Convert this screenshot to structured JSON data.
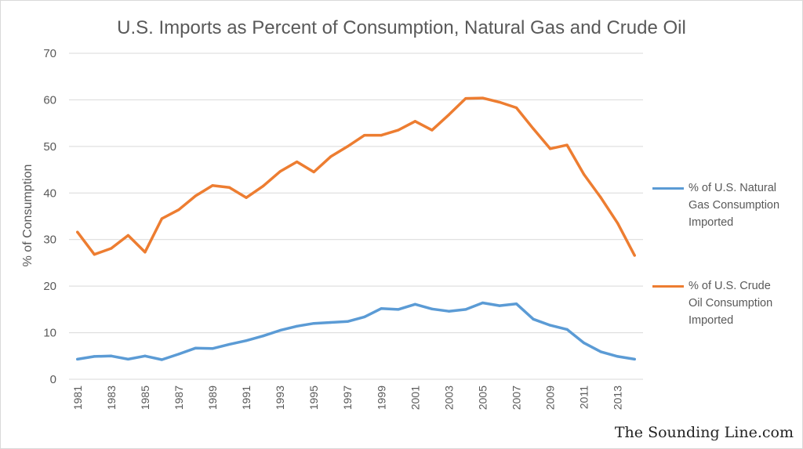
{
  "chart_data": {
    "type": "line",
    "title": "U.S. Imports as Percent of Consumption, Natural Gas and Crude Oil",
    "ylabel": "% of Consumption",
    "xlabel": "",
    "ylim": [
      0,
      70
    ],
    "yticks": [
      0,
      10,
      20,
      30,
      40,
      50,
      60,
      70
    ],
    "x": [
      1981,
      1982,
      1983,
      1984,
      1985,
      1986,
      1987,
      1988,
      1989,
      1990,
      1991,
      1992,
      1993,
      1994,
      1995,
      1996,
      1997,
      1998,
      1999,
      2000,
      2001,
      2002,
      2003,
      2004,
      2005,
      2006,
      2007,
      2008,
      2009,
      2010,
      2011,
      2012,
      2013,
      2014
    ],
    "xtick_labels": [
      "1981",
      "1983",
      "1985",
      "1987",
      "1989",
      "1991",
      "1993",
      "1995",
      "1997",
      "1999",
      "2001",
      "2003",
      "2005",
      "2007",
      "2009",
      "2011",
      "2013"
    ],
    "grid": true,
    "legend_position": "right",
    "series": [
      {
        "name": "% of U.S. Natural Gas Consumption Imported",
        "color": "#5b9bd5",
        "values": [
          4.3,
          4.9,
          5.0,
          4.3,
          5.0,
          4.2,
          5.4,
          6.7,
          6.6,
          7.5,
          8.3,
          9.3,
          10.5,
          11.4,
          12.0,
          12.2,
          12.4,
          13.4,
          15.2,
          15.0,
          16.1,
          15.1,
          14.6,
          15.0,
          16.4,
          15.8,
          16.2,
          12.9,
          11.6,
          10.7,
          7.8,
          5.9,
          4.9,
          4.3
        ]
      },
      {
        "name": "% of U.S. Crude Oil Consumption Imported",
        "color": "#ed7d31",
        "values": [
          31.6,
          26.8,
          28.1,
          30.9,
          27.3,
          34.5,
          36.4,
          39.4,
          41.6,
          41.2,
          39.0,
          41.5,
          44.6,
          46.7,
          44.5,
          47.8,
          50.0,
          52.4,
          52.4,
          53.5,
          55.4,
          53.5,
          56.8,
          60.3,
          60.4,
          59.5,
          58.3,
          53.8,
          49.5,
          50.3,
          44.0,
          39.0,
          33.5,
          26.6
        ]
      }
    ]
  },
  "legend": {
    "gas_lines": [
      "% of U.S. Natural",
      "Gas Consumption",
      "Imported"
    ],
    "oil_lines": [
      "% of U.S. Crude",
      "Oil Consumption",
      "Imported"
    ]
  },
  "watermark": "The Sounding Line.com"
}
